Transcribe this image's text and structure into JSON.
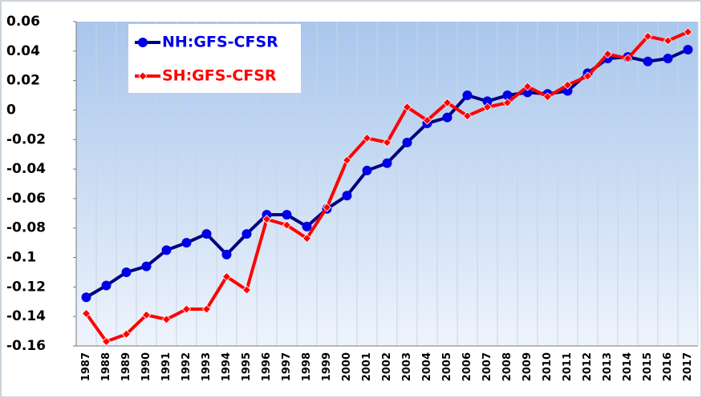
{
  "chart_data": {
    "type": "line",
    "categories": [
      "1987",
      "1988",
      "1989",
      "1990",
      "1991",
      "1992",
      "1993",
      "1994",
      "1995",
      "1996",
      "1997",
      "1998",
      "1999",
      "2000",
      "2001",
      "2002",
      "2003",
      "2004",
      "2005",
      "2006",
      "2007",
      "2008",
      "2009",
      "2010",
      "2011",
      "2012",
      "2013",
      "2014",
      "2015",
      "2016",
      "2017"
    ],
    "series": [
      {
        "name": "NH:GFS-CFSR",
        "color": "#0000e6",
        "marker": "circle",
        "values": [
          -0.127,
          -0.119,
          -0.11,
          -0.106,
          -0.095,
          -0.09,
          -0.084,
          -0.098,
          -0.084,
          -0.071,
          -0.071,
          -0.079,
          -0.067,
          -0.058,
          -0.041,
          -0.036,
          -0.022,
          -0.009,
          -0.005,
          0.01,
          0.006,
          0.01,
          0.012,
          0.011,
          0.013,
          0.025,
          0.035,
          0.036,
          0.033,
          0.035,
          0.041
        ]
      },
      {
        "name": "SH:GFS-CFSR",
        "color": "#ff0000",
        "marker": "diamond",
        "values": [
          -0.138,
          -0.157,
          -0.152,
          -0.139,
          -0.142,
          -0.135,
          -0.135,
          -0.113,
          -0.122,
          -0.074,
          -0.078,
          -0.087,
          -0.066,
          -0.034,
          -0.019,
          -0.022,
          0.002,
          -0.007,
          0.005,
          -0.004,
          0.002,
          0.005,
          0.016,
          0.009,
          0.017,
          0.023,
          0.038,
          0.035,
          0.05,
          0.047,
          0.053
        ]
      }
    ],
    "ylim": [
      -0.16,
      0.06
    ],
    "yticks": [
      0.06,
      0.04,
      0.02,
      0,
      -0.02,
      -0.04,
      -0.06,
      -0.08,
      -0.1,
      -0.12,
      -0.14,
      -0.16
    ],
    "legend": "upper left"
  }
}
